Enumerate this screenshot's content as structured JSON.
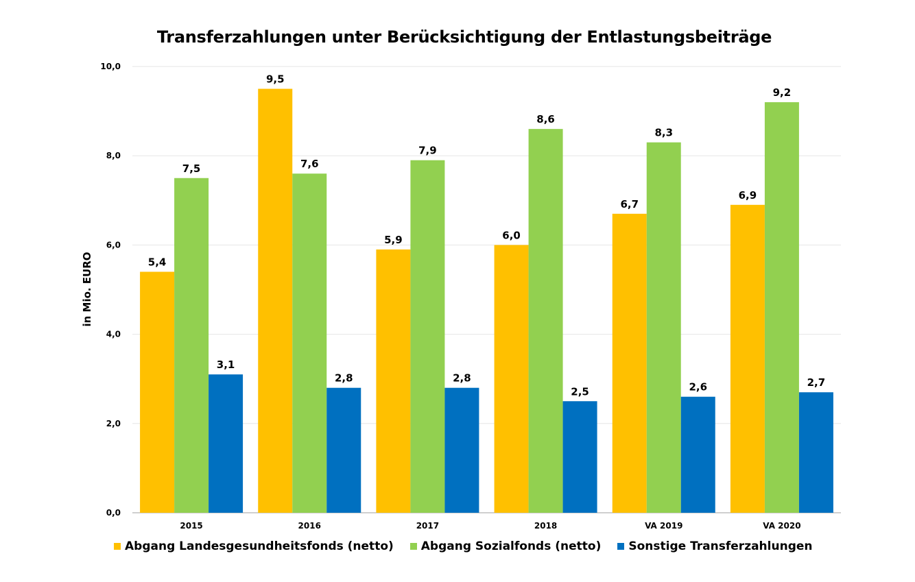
{
  "chart_data": {
    "type": "bar",
    "title": "Transferzahlungen unter Berücksichtigung der Entlastungsbeiträge",
    "xlabel": "",
    "ylabel": "in Mio. EURO",
    "categories": [
      "2015",
      "2016",
      "2017",
      "2018",
      "VA 2019",
      "VA 2020"
    ],
    "ylim": [
      0,
      10
    ],
    "yticks": [
      "0,0",
      "2,0",
      "4,0",
      "6,0",
      "8,0",
      "10,0"
    ],
    "grid": true,
    "legend_position": "bottom",
    "series": [
      {
        "name": "Abgang Landesgesundheitsfonds (netto)",
        "color": "#FFC000",
        "values": [
          5.4,
          9.5,
          5.9,
          6.0,
          6.7,
          6.9
        ],
        "labels": [
          "5,4",
          "9,5",
          "5,9",
          "6,0",
          "6,7",
          "6,9"
        ]
      },
      {
        "name": "Abgang Sozialfonds (netto)",
        "color": "#92D050",
        "values": [
          7.5,
          7.6,
          7.9,
          8.6,
          8.3,
          9.2
        ],
        "labels": [
          "7,5",
          "7,6",
          "7,9",
          "8,6",
          "8,3",
          "9,2"
        ]
      },
      {
        "name": "Sonstige Transferzahlungen",
        "color": "#0070C0",
        "values": [
          3.1,
          2.8,
          2.8,
          2.5,
          2.6,
          2.7
        ],
        "labels": [
          "3,1",
          "2,8",
          "2,8",
          "2,5",
          "2,6",
          "2,7"
        ]
      }
    ]
  }
}
